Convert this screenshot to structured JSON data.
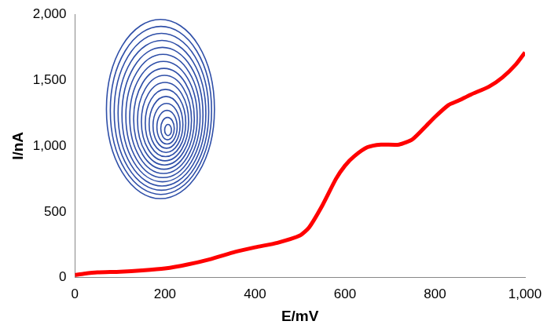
{
  "chart_data": {
    "type": "line",
    "x_label": "E/mV",
    "y_label": "I/nA",
    "x": [
      0,
      20,
      50,
      100,
      150,
      200,
      250,
      300,
      350,
      400,
      450,
      500,
      520,
      550,
      580,
      600,
      620,
      650,
      680,
      720,
      750,
      780,
      800,
      830,
      850,
      880,
      920,
      950,
      980,
      1000
    ],
    "values": [
      20,
      30,
      40,
      45,
      55,
      70,
      100,
      140,
      190,
      230,
      265,
      320,
      380,
      550,
      750,
      850,
      920,
      990,
      1010,
      1010,
      1050,
      1150,
      1220,
      1310,
      1340,
      1390,
      1450,
      1520,
      1620,
      1710
    ],
    "color": "#ff0000",
    "xlim": [
      0,
      1000
    ],
    "xticks": [
      0,
      200,
      400,
      600,
      800,
      1000
    ],
    "ylim": [
      0,
      2000
    ],
    "yticks": [
      0,
      500,
      1000,
      1500,
      2000
    ],
    "grid": false
  }
}
